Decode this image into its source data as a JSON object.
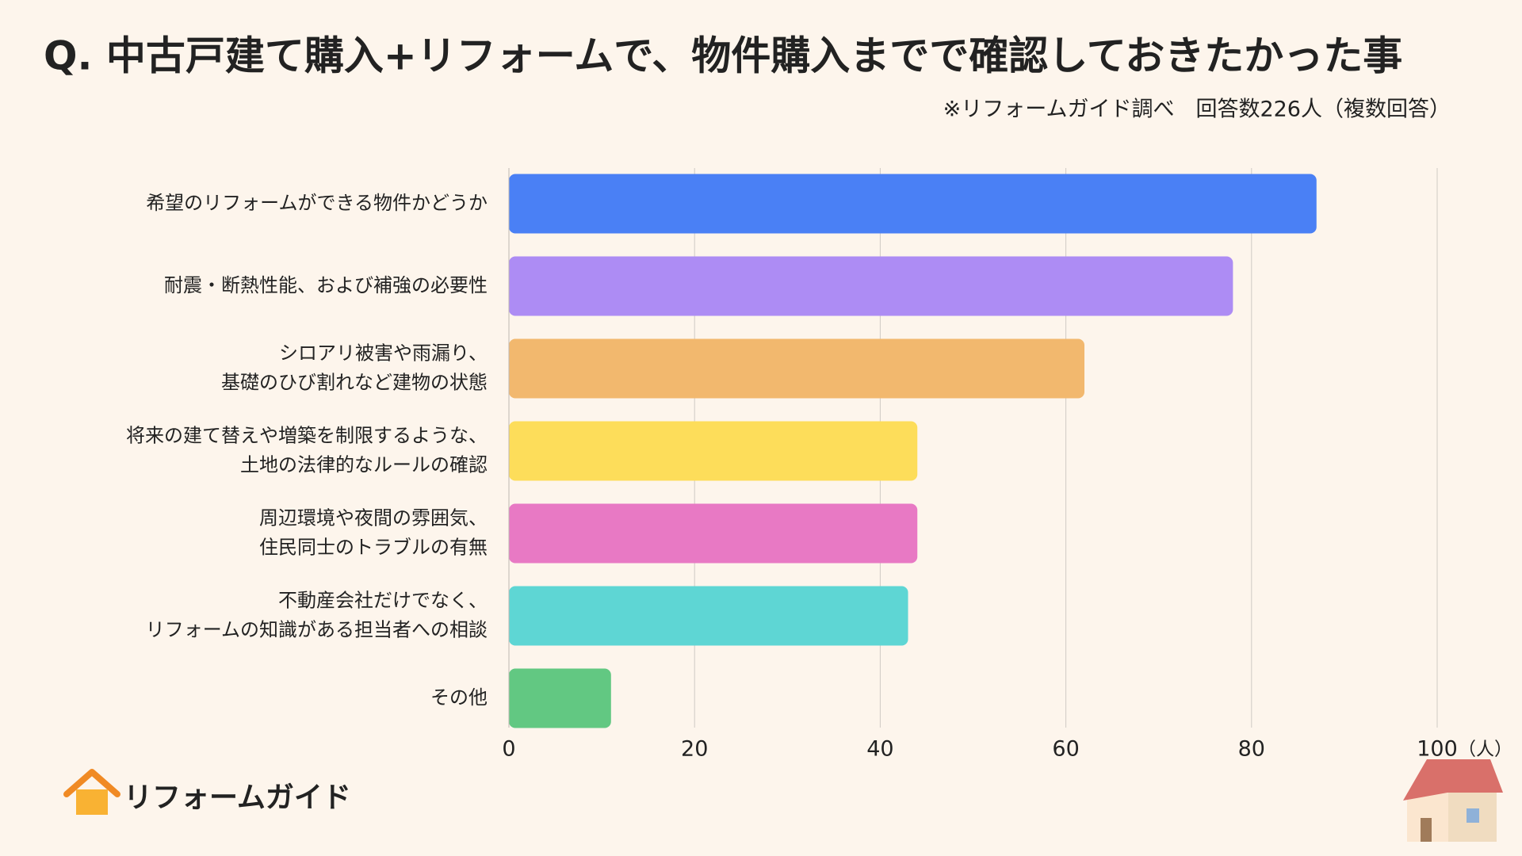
{
  "chart_data": {
    "type": "hbar",
    "title": "Q.  中古戸建て購入+リフォームで、物件購入までで確認しておきたかった事",
    "subtitle": "※リフォームガイド調べ　回答数226人（複数回答）",
    "x_label": "（人）",
    "categories": [
      [
        "希望のリフォームができる物件かどうか"
      ],
      [
        "耐震・断熱性能、および補強の必要性"
      ],
      [
        "シロアリ被害や雨漏り、",
        "基礎のひび割れなど建物の状態"
      ],
      [
        "将来の建て替えや増築を制限するような、",
        "土地の法律的なルールの確認"
      ],
      [
        "周辺環境や夜間の雰囲気、",
        "住民同士のトラブルの有無"
      ],
      [
        "不動産会社だけでなく、",
        "リフォームの知識がある担当者への相談"
      ],
      [
        "その他"
      ]
    ],
    "values": [
      87,
      78,
      62,
      44,
      44,
      43,
      11
    ],
    "colors": [
      "#4a80f5",
      "#ad8cf4",
      "#f2b86e",
      "#fddd5a",
      "#e879c4",
      "#5ed6d4",
      "#62c882"
    ],
    "xlim": [
      0,
      100
    ],
    "xticks": [
      0,
      20,
      40,
      60,
      80,
      100
    ],
    "grid": true
  },
  "brand": "リフォームガイド"
}
